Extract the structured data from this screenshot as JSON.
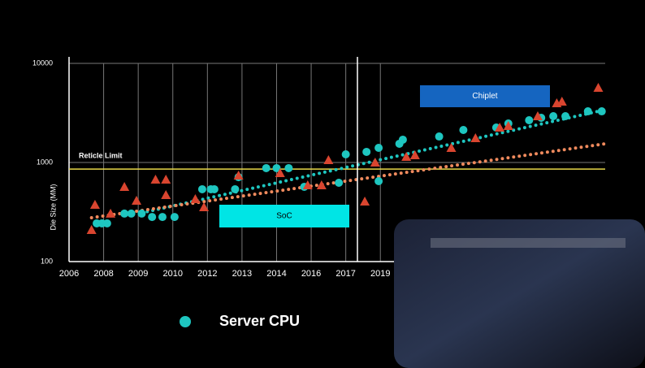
{
  "chart_data": {
    "type": "scatter",
    "ylabel": "Die Size (MM)",
    "log_y": true,
    "grid": true,
    "ylim": [
      100,
      10000
    ],
    "yticks": [
      100,
      1000,
      10000
    ],
    "xlim": [
      2006,
      2032
    ],
    "xticks": [
      2006,
      2008,
      2009,
      2010,
      2012,
      2013,
      2014,
      2016,
      2017,
      2019
    ],
    "reticle": {
      "label": "Reticle Limit",
      "value": 858,
      "color": "#e8d84a"
    },
    "annotations": [
      {
        "label": "SoC",
        "color": "#00e5e5"
      },
      {
        "label": "Chiplet",
        "color": "#1565c0"
      }
    ],
    "series": [
      {
        "name": "Server CPU",
        "color": "#1ec6c0",
        "marker": "circle",
        "x": [
          2007.6,
          2007.9,
          2008.1,
          2008.6,
          2008.8,
          2009.1,
          2009.4,
          2009.7,
          2010.1,
          2011.7,
          2012.1,
          2012.2,
          2012.8,
          2012.9,
          2013.7,
          2014.0,
          2014.7,
          2015.6,
          2016.8,
          2017.0,
          2018.2,
          2018.9,
          2018.9,
          2020.1,
          2020.3,
          2022.4,
          2023.8,
          2025.7,
          2026.4,
          2027.6,
          2028.3,
          2029.0,
          2029.7,
          2031.0,
          2031.8
        ],
        "values": [
          243,
          243,
          243,
          305,
          305,
          305,
          282,
          282,
          282,
          537,
          537,
          537,
          537,
          711,
          877,
          877,
          877,
          568,
          624,
          1208,
          1279,
          1405,
          648,
          1545,
          1698,
          1828,
          2128,
          2251,
          2473,
          2667,
          2825,
          2931,
          2931,
          3281,
          3281
        ]
      },
      {
        "color": "#d9452f",
        "marker": "triangle",
        "x": [
          2007.3,
          2007.5,
          2008.2,
          2008.6,
          2008.95,
          2009.5,
          2009.8,
          2009.8,
          2011.3,
          2011.8,
          2012.9,
          2014.2,
          2015.8,
          2016.3,
          2016.5,
          2018.1,
          2018.7,
          2020.5,
          2021.0,
          2023.1,
          2024.5,
          2025.9,
          2026.4,
          2028.1,
          2029.2,
          2029.5,
          2031.6
        ],
        "values": [
          209,
          375,
          305,
          568,
          412,
          673,
          673,
          470,
          428,
          354,
          739,
          782,
          589,
          589,
          1059,
          404,
          1000,
          1141,
          1185,
          1405,
          1762,
          2251,
          2338,
          2931,
          3964,
          4117,
          5675
        ]
      }
    ],
    "trends": [
      {
        "color": "#1ec6c0",
        "x": [
          2009.1,
          2032
        ],
        "values": [
          310,
          3403
        ]
      },
      {
        "color": "#f08a5d",
        "x": [
          2007.3,
          2032
        ],
        "values": [
          277,
          1544
        ]
      }
    ]
  }
}
